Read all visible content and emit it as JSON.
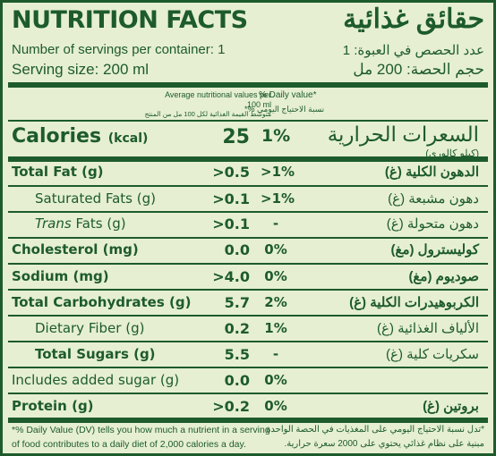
{
  "title": {
    "en": "NUTRITION FACTS",
    "ar": "حقائق غذائية"
  },
  "servings": {
    "en": "Number of servings per container: 1",
    "ar": "عدد الحصص في العبوة: 1"
  },
  "serving_size": {
    "en": "Serving size: 200 ml",
    "ar": "حجم الحصة: 200 مل"
  },
  "header": {
    "avg_en": "Average nutritional values per 100 ml",
    "avg_ar": "متوسط القيمة الغذائية لكل 100 مل من المنتج",
    "dv_en": "% Daily value*",
    "dv_ar": "نسبة الاحتياج اليومي %*"
  },
  "calories": {
    "en": "Calories",
    "unit": "(kcal)",
    "value": "25",
    "dv": "1%",
    "ar": "السعرات الحرارية",
    "ar_unit": "(كيلو كالوري)"
  },
  "rows": [
    {
      "en": "Total Fat (g)",
      "value": ">0.5",
      "dv": ">1%",
      "ar": "الدهون الكلية (غ)"
    },
    {
      "en": "Saturated Fats (g)",
      "value": ">0.1",
      "dv": ">1%",
      "ar": "دهون مشبعة (غ)"
    },
    {
      "en_italic": "Trans",
      "en": " Fats (g)",
      "value": ">0.1",
      "dv": "-",
      "ar": "دهون متحولة (غ)"
    },
    {
      "en": "Cholesterol (mg)",
      "value": "0.0",
      "dv": "0%",
      "ar": "كوليسترول (مغ)"
    },
    {
      "en": "Sodium (mg)",
      "value": ">4.0",
      "dv": "0%",
      "ar": "صوديوم (مغ)"
    },
    {
      "en": "Total Carbohydrates (g)",
      "value": "5.7",
      "dv": "2%",
      "ar": "الكربوهيدرات الكلية (غ)"
    },
    {
      "en": "Dietary Fiber (g)",
      "value": "0.2",
      "dv": "1%",
      "ar": "الألياف الغذائية (غ)"
    },
    {
      "en": "Total Sugars (g)",
      "value": "5.5",
      "dv": "-",
      "ar": "سكريات كلية (غ)"
    },
    {
      "en": "Includes added sugar (g)",
      "value": "0.0",
      "dv": "0%",
      "ar": ""
    },
    {
      "en": "Protein (g)",
      "value": ">0.2",
      "dv": "0%",
      "ar": "بروتين (غ)"
    }
  ],
  "footnote": {
    "en": "*% Daily Value (DV) tells you how much a nutrient in a serving of food contributes to a daily diet of 2,000 calories a day.",
    "ar": "*تدل نسبة الاحتياج اليومي على المغذيات في الحصة الواحدة مبنية على نظام غذائي يحتوي على 2000 سعرة حرارية."
  },
  "colors": {
    "ink": "#1d5b2c",
    "background": "#e6efd2"
  }
}
